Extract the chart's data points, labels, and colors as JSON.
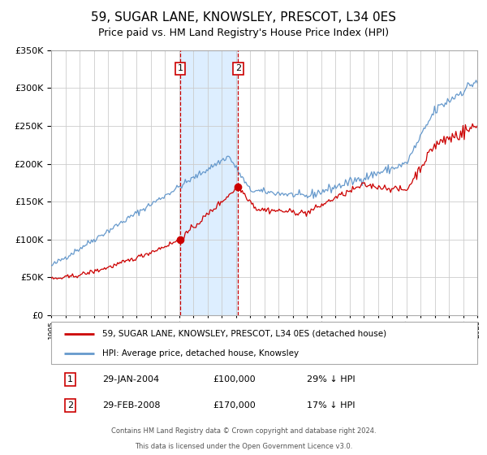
{
  "title": "59, SUGAR LANE, KNOWSLEY, PRESCOT, L34 0ES",
  "subtitle": "Price paid vs. HM Land Registry's House Price Index (HPI)",
  "title_fontsize": 11,
  "subtitle_fontsize": 9,
  "background_color": "#ffffff",
  "plot_bg_color": "#ffffff",
  "grid_color": "#cccccc",
  "ylim": [
    0,
    350000
  ],
  "yticks": [
    0,
    50000,
    100000,
    150000,
    200000,
    250000,
    300000,
    350000
  ],
  "sale1_date": 2004.08,
  "sale1_price": 100000,
  "sale1_label": "1",
  "sale2_date": 2008.17,
  "sale2_price": 170000,
  "sale2_label": "2",
  "shade_start": 2004.08,
  "shade_end": 2008.17,
  "shade_color": "#ddeeff",
  "vline_color": "#cc0000",
  "marker_color": "#cc0000",
  "red_line_color": "#cc0000",
  "blue_line_color": "#6699cc",
  "legend_label_red": "59, SUGAR LANE, KNOWSLEY, PRESCOT, L34 0ES (detached house)",
  "legend_label_blue": "HPI: Average price, detached house, Knowsley",
  "table_rows": [
    {
      "num": "1",
      "date": "29-JAN-2004",
      "price": "£100,000",
      "hpi": "29% ↓ HPI"
    },
    {
      "num": "2",
      "date": "29-FEB-2008",
      "price": "£170,000",
      "hpi": "17% ↓ HPI"
    }
  ],
  "footer_line1": "Contains HM Land Registry data © Crown copyright and database right 2024.",
  "footer_line2": "This data is licensed under the Open Government Licence v3.0.",
  "xmin": 1995,
  "xmax": 2025
}
